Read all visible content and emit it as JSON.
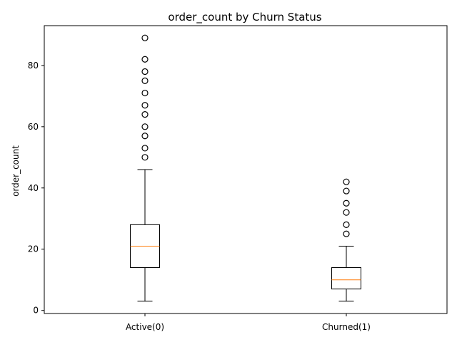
{
  "chart_data": {
    "type": "box",
    "title": "order_count by Churn Status",
    "xlabel": "",
    "ylabel": "order_count",
    "ylim": [
      -1,
      93
    ],
    "yticks": [
      0,
      20,
      40,
      60,
      80
    ],
    "grid": false,
    "categories": [
      "Active(0)",
      "Churned(1)"
    ],
    "boxes": [
      {
        "category": "Active(0)",
        "whisker_low": 3,
        "q1": 14,
        "median": 21,
        "q3": 28,
        "whisker_high": 46,
        "outliers": [
          50,
          53,
          57,
          60,
          64,
          67,
          71,
          75,
          78,
          82,
          89
        ]
      },
      {
        "category": "Churned(1)",
        "whisker_low": 3,
        "q1": 7,
        "median": 10,
        "q3": 14,
        "whisker_high": 21,
        "outliers": [
          25,
          28,
          32,
          35,
          39,
          42
        ]
      }
    ],
    "colors": {
      "box": "#000000",
      "median": "#ff7f0e",
      "outlier": "#000000"
    }
  }
}
